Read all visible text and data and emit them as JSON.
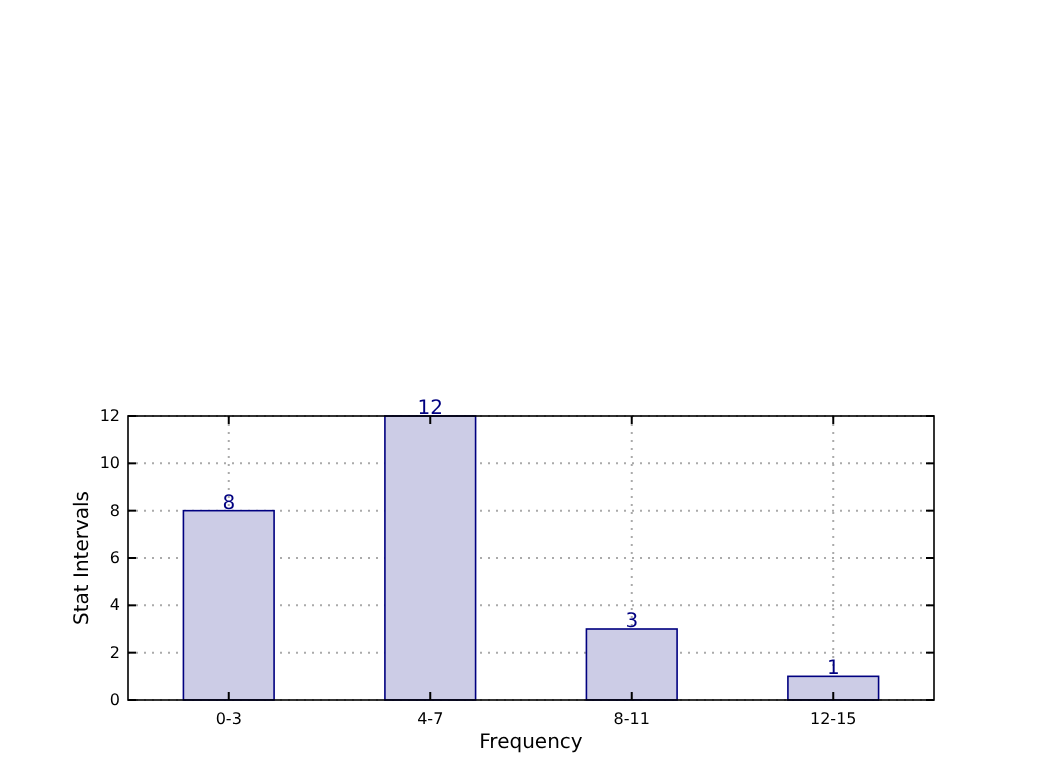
{
  "chart_data": {
    "type": "bar",
    "xlabel": "Frequency",
    "ylabel": "Stat Intervals",
    "categories": [
      "0-3",
      "4-7",
      "8-11",
      "12-15"
    ],
    "values": [
      8,
      12,
      3,
      1
    ],
    "color": "#cccce6",
    "ylim": [
      0,
      12
    ],
    "yticks": [
      0,
      2,
      4,
      6,
      8,
      10,
      12
    ],
    "grid": true,
    "data_labels": true
  }
}
